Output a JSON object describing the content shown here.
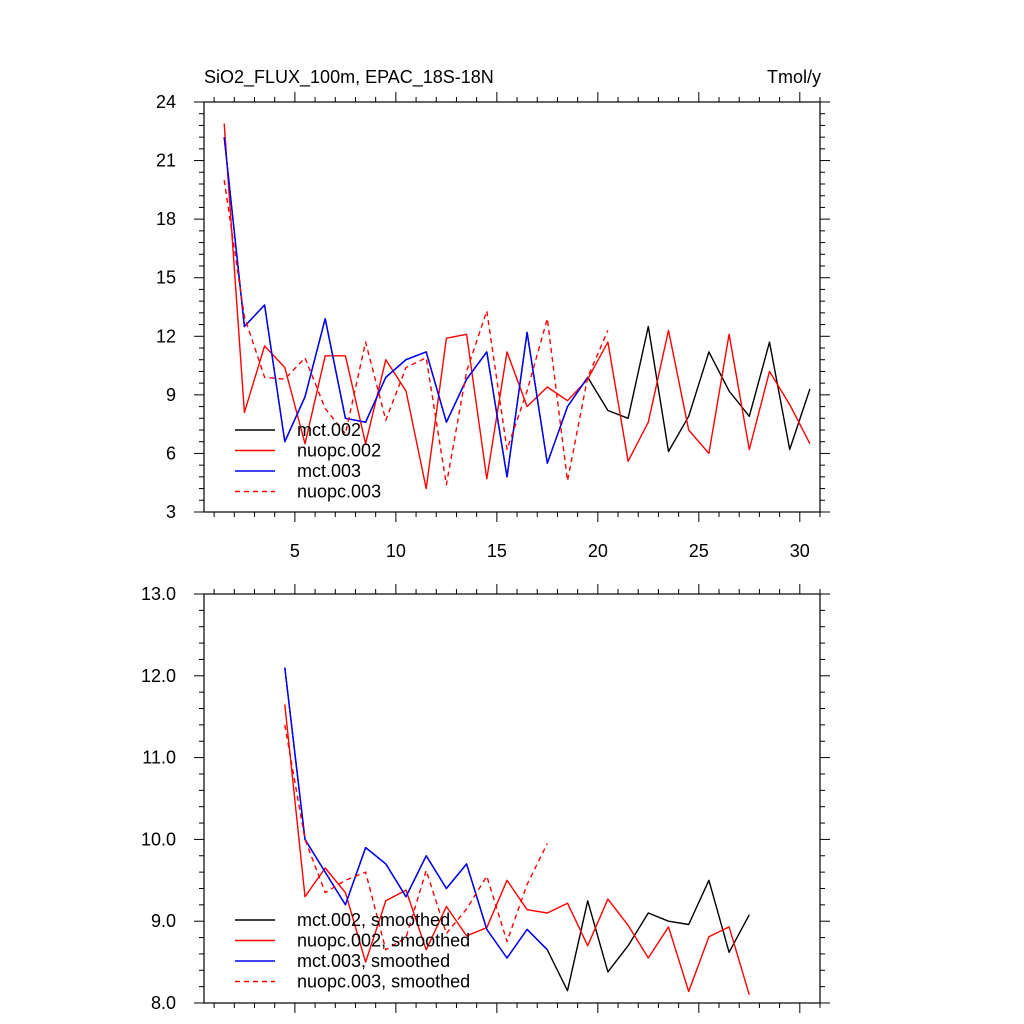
{
  "title_left": "SiO2_FLUX_100m, EPAC_18S-18N",
  "title_right": "Tmol/y",
  "chart_data": [
    {
      "type": "line",
      "xlim": [
        0.5,
        31
      ],
      "ylim": [
        3,
        24
      ],
      "xticks": [
        5,
        10,
        15,
        20,
        25,
        30
      ],
      "xtick_labels": [
        "5",
        "10",
        "15",
        "20",
        "25",
        "30"
      ],
      "yticks": [
        3,
        6,
        9,
        12,
        15,
        18,
        21,
        24
      ],
      "ytick_labels": [
        "3",
        "6",
        "9",
        "12",
        "15",
        "18",
        "21",
        "24"
      ],
      "legend_position": "bottom-left",
      "series": [
        {
          "name": "mct.002",
          "color": "#000000",
          "dash": false,
          "x0": 1.5,
          "values": [
            22.2,
            12.5,
            13.6,
            6.6,
            8.9,
            12.9,
            7.8,
            7.6,
            9.9,
            10.8,
            11.2,
            7.6,
            9.8,
            11.2,
            4.8,
            12.2,
            5.5,
            8.4,
            9.9,
            8.2,
            7.8,
            12.5,
            6.1,
            7.9,
            11.2,
            9.2,
            7.9,
            11.7,
            6.2,
            9.3
          ]
        },
        {
          "name": "nuopc.002",
          "color": "#ff0000",
          "dash": false,
          "x0": 1.5,
          "values": [
            22.9,
            8.1,
            11.5,
            10.4,
            6.5,
            11.0,
            11.0,
            6.5,
            10.8,
            9.2,
            4.2,
            11.9,
            12.1,
            4.7,
            11.2,
            8.4,
            9.4,
            8.7,
            9.8,
            11.7,
            5.6,
            7.6,
            12.3,
            7.2,
            6.0,
            12.1,
            6.2,
            10.2,
            8.5,
            6.5
          ]
        },
        {
          "name": "mct.003",
          "color": "#0000ff",
          "dash": false,
          "x0": 1.5,
          "values": [
            22.2,
            12.5,
            13.6,
            6.6,
            8.9,
            12.9,
            7.8,
            7.6,
            9.9,
            10.8,
            11.2,
            7.6,
            9.8,
            11.2,
            4.8,
            12.2,
            5.5,
            8.4,
            9.9
          ]
        },
        {
          "name": "nuopc.003",
          "color": "#ff0000",
          "dash": true,
          "x0": 1.5,
          "values": [
            20.0,
            13.0,
            9.9,
            9.8,
            10.9,
            8.3,
            7.0,
            11.7,
            7.7,
            10.4,
            10.9,
            4.4,
            10.2,
            13.3,
            6.2,
            9.2,
            12.9,
            4.6,
            9.9,
            12.3
          ]
        }
      ]
    },
    {
      "type": "line",
      "xlim": [
        0.5,
        31
      ],
      "ylim": [
        8.0,
        13.0
      ],
      "xticks": [
        5,
        10,
        15,
        20,
        25,
        30
      ],
      "yticks": [
        8.0,
        9.0,
        10.0,
        11.0,
        12.0,
        13.0
      ],
      "ytick_labels": [
        "8.0",
        "9.0",
        "10.0",
        "11.0",
        "12.0",
        "13.0"
      ],
      "legend_position": "bottom-left",
      "series": [
        {
          "name": "mct.002, smoothed",
          "color": "#000000",
          "dash": false,
          "x0": 4.5,
          "values": [
            12.1,
            10.0,
            9.6,
            9.2,
            9.9,
            9.7,
            9.3,
            9.8,
            9.4,
            9.7,
            8.9,
            8.55,
            8.9,
            8.65,
            8.15,
            9.25,
            8.38,
            8.7,
            9.1,
            9.0,
            8.96,
            9.5,
            8.62,
            9.08
          ]
        },
        {
          "name": "nuopc.002, smoothed",
          "color": "#ff0000",
          "dash": false,
          "x0": 4.5,
          "values": [
            11.65,
            9.3,
            9.65,
            9.35,
            8.5,
            9.25,
            9.38,
            8.65,
            9.18,
            8.82,
            8.92,
            9.5,
            9.14,
            9.1,
            9.22,
            8.7,
            9.27,
            8.95,
            8.55,
            8.93,
            8.14,
            8.81,
            8.93,
            8.1
          ]
        },
        {
          "name": "mct.003, smoothed",
          "color": "#0000ff",
          "dash": false,
          "x0": 4.5,
          "values": [
            12.1,
            10.0,
            9.6,
            9.2,
            9.9,
            9.7,
            9.3,
            9.8,
            9.4,
            9.7,
            8.9,
            8.55,
            8.9,
            8.65
          ]
        },
        {
          "name": "nuopc.003, smoothed",
          "color": "#ff0000",
          "dash": true,
          "x0": 4.5,
          "values": [
            11.4,
            10.0,
            9.35,
            9.5,
            9.6,
            8.65,
            8.8,
            9.62,
            8.85,
            9.15,
            9.55,
            8.75,
            9.45,
            9.95
          ]
        }
      ]
    }
  ]
}
